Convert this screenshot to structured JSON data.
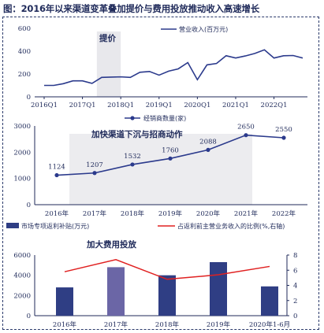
{
  "title": "图：2016年以来渠道变革叠加提价与费用投放推动收入高速增长",
  "chart_data": [
    {
      "type": "line",
      "series": [
        {
          "name": "营业收入(百万元)",
          "values": [
            100,
            100,
            115,
            140,
            140,
            118,
            170,
            173,
            175,
            170,
            215,
            222,
            190,
            225,
            245,
            300,
            150,
            280,
            292,
            360,
            340,
            358,
            380,
            412,
            340,
            360,
            362,
            340
          ]
        }
      ],
      "x_tick_labels": [
        "2016Q1",
        "2017Q1",
        "2018Q1",
        "2019Q1",
        "2020Q1",
        "2021Q1",
        "2022Q1"
      ],
      "ylim": [
        0,
        600
      ],
      "yticks": [
        0,
        200,
        400,
        600
      ],
      "annotation": "提价",
      "color": "#2b3a8c"
    },
    {
      "type": "line",
      "categories": [
        "2016年",
        "2017年",
        "2018年",
        "2019年",
        "2020年",
        "2021年",
        "2022年"
      ],
      "series": [
        {
          "name": "经销商数量(家)",
          "values": [
            1124,
            1207,
            1532,
            1760,
            2088,
            2650,
            2550
          ]
        }
      ],
      "data_labels": [
        "1124",
        "1207",
        "1532",
        "1760",
        "2088",
        "2650",
        "2550"
      ],
      "ylim": [
        0,
        3000
      ],
      "yticks": [
        0,
        1000,
        2000,
        3000
      ],
      "annotation": "加快渠道下沉与招商动作",
      "color": "#2b3a8c"
    },
    {
      "type": "bar",
      "categories": [
        "2016年",
        "2017年",
        "2018年",
        "2019年",
        "2020年1-6月"
      ],
      "series": [
        {
          "name": "市场专项返利补贴(万元)",
          "values": [
            2800,
            4800,
            4000,
            5300,
            2900
          ],
          "highlight_index": 1
        },
        {
          "name": "占返利前主营业务收入的比例(%,右轴)",
          "values": [
            5.8,
            7.4,
            4.8,
            5.4,
            6.5
          ]
        }
      ],
      "ylim": [
        0,
        6000
      ],
      "yticks": [
        0,
        2000,
        4000,
        6000
      ],
      "y2lim": [
        0,
        8
      ],
      "y2ticks": [
        0,
        2,
        4,
        6,
        8
      ],
      "annotation": "加大费用投放",
      "colors": {
        "bar": "#2f3e84",
        "bar_highlight": "#6b66a6",
        "line": "#e02020"
      }
    }
  ]
}
